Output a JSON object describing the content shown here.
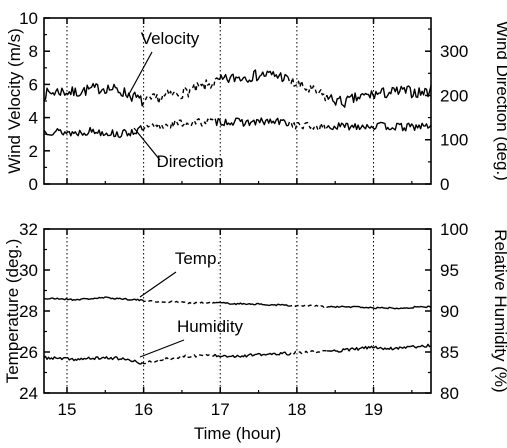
{
  "chart_data": [
    {
      "type": "line",
      "panel": "top",
      "xlabel": "",
      "ylabel": "Wind Velocity (m/s)",
      "y2label": "Wind Direction (deg.)",
      "xlim": [
        14.7,
        19.75
      ],
      "ylim": [
        0,
        10
      ],
      "y2lim": [
        0,
        375
      ],
      "yticks": [
        0,
        2,
        4,
        6,
        8,
        10
      ],
      "y2ticks": [
        0,
        100,
        200,
        300
      ],
      "xgrid": [
        15,
        16,
        17,
        18,
        19
      ],
      "series": [
        {
          "name": "Velocity",
          "axis": "left",
          "style": "solid-then-dashed",
          "x": [
            14.7,
            14.9,
            15.1,
            15.3,
            15.5,
            15.7,
            15.9,
            16.0,
            16.2,
            16.4,
            16.6,
            16.8,
            17.0,
            17.2,
            17.4,
            17.6,
            17.8,
            17.9,
            18.0,
            18.2,
            18.4,
            18.6,
            18.8,
            19.0,
            19.2,
            19.4,
            19.6,
            19.75
          ],
          "values": [
            5.4,
            5.6,
            5.5,
            5.7,
            5.8,
            5.6,
            5.2,
            4.9,
            5.2,
            5.4,
            5.6,
            5.9,
            6.2,
            6.4,
            6.5,
            6.6,
            6.5,
            6.2,
            6.0,
            5.6,
            5.2,
            4.9,
            5.2,
            5.4,
            5.5,
            5.6,
            5.5,
            5.6
          ]
        },
        {
          "name": "Direction",
          "axis": "right",
          "style": "solid-then-dashed",
          "x": [
            14.7,
            14.9,
            15.1,
            15.3,
            15.5,
            15.7,
            15.9,
            16.0,
            16.2,
            16.4,
            16.6,
            16.8,
            17.0,
            17.2,
            17.4,
            17.6,
            17.8,
            17.9,
            18.0,
            18.2,
            18.4,
            18.6,
            18.8,
            19.0,
            19.2,
            19.4,
            19.6,
            19.75
          ],
          "values": [
            120,
            118,
            115,
            120,
            117,
            112,
            120,
            125,
            130,
            136,
            138,
            140,
            141,
            140,
            139,
            141,
            140,
            138,
            132,
            130,
            128,
            130,
            132,
            131,
            130,
            128,
            130,
            131
          ]
        }
      ],
      "annotations": [
        "Velocity",
        "Direction"
      ]
    },
    {
      "type": "line",
      "panel": "bottom",
      "xlabel": "Time (hour)",
      "ylabel": "Temperature (deg.)",
      "y2label": "Relative Humidity (%)",
      "xlim": [
        14.7,
        19.75
      ],
      "ylim": [
        24,
        32
      ],
      "y2lim": [
        80,
        100
      ],
      "yticks": [
        24,
        26,
        28,
        30,
        32
      ],
      "y2ticks": [
        80,
        85,
        90,
        95,
        100
      ],
      "xticks": [
        15,
        16,
        17,
        18,
        19
      ],
      "xgrid": [
        15,
        16,
        17,
        18,
        19
      ],
      "series": [
        {
          "name": "Temp.",
          "axis": "left",
          "style": "solid-then-dashed",
          "x": [
            14.7,
            14.9,
            15.1,
            15.3,
            15.5,
            15.7,
            15.9,
            16.0,
            16.2,
            16.4,
            16.6,
            16.8,
            17.0,
            17.2,
            17.4,
            17.6,
            17.8,
            17.9,
            18.0,
            18.2,
            18.4,
            18.6,
            18.8,
            19.0,
            19.2,
            19.4,
            19.6,
            19.75
          ],
          "values": [
            28.6,
            28.6,
            28.55,
            28.6,
            28.65,
            28.6,
            28.55,
            28.5,
            28.45,
            28.45,
            28.4,
            28.4,
            28.4,
            28.35,
            28.35,
            28.3,
            28.3,
            28.25,
            28.25,
            28.25,
            28.2,
            28.2,
            28.2,
            28.15,
            28.15,
            28.15,
            28.2,
            28.2
          ]
        },
        {
          "name": "Humidity",
          "axis": "right",
          "style": "solid-then-dashed",
          "x": [
            14.7,
            14.9,
            15.1,
            15.3,
            15.5,
            15.7,
            15.9,
            16.0,
            16.2,
            16.4,
            16.6,
            16.8,
            17.0,
            17.2,
            17.4,
            17.6,
            17.8,
            17.9,
            18.0,
            18.2,
            18.4,
            18.6,
            18.8,
            19.0,
            19.2,
            19.4,
            19.6,
            19.75
          ],
          "values": [
            84.3,
            84.2,
            84.1,
            84.2,
            84.3,
            84.2,
            83.8,
            83.6,
            84.0,
            84.3,
            84.5,
            84.6,
            84.6,
            84.5,
            84.6,
            84.7,
            84.8,
            84.8,
            84.9,
            85.0,
            85.1,
            85.2,
            85.4,
            85.6,
            85.4,
            85.6,
            85.7,
            85.8
          ]
        }
      ],
      "annotations": [
        "Temp.",
        "Humidity"
      ]
    }
  ]
}
